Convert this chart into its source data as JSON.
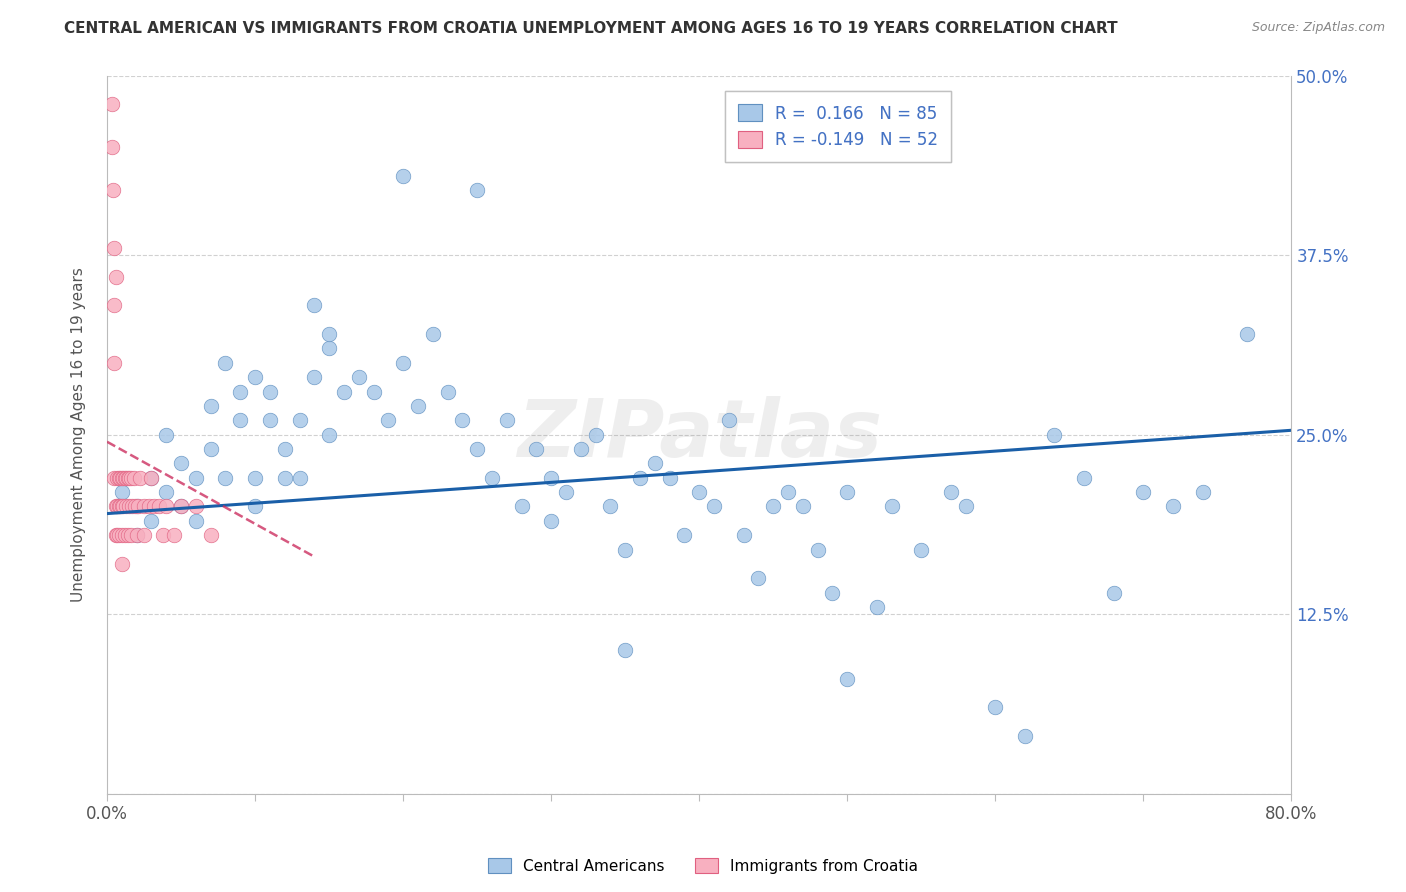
{
  "title": "CENTRAL AMERICAN VS IMMIGRANTS FROM CROATIA UNEMPLOYMENT AMONG AGES 16 TO 19 YEARS CORRELATION CHART",
  "source": "Source: ZipAtlas.com",
  "ylabel": "Unemployment Among Ages 16 to 19 years",
  "xmin": 0.0,
  "xmax": 0.8,
  "ymin": 0.0,
  "ymax": 0.5,
  "blue_R": 0.166,
  "blue_N": 85,
  "pink_R": -0.149,
  "pink_N": 52,
  "blue_face": "#a8c8e8",
  "blue_edge": "#6090c0",
  "pink_face": "#f8b0c0",
  "pink_edge": "#e06080",
  "blue_line": "#1a5fa8",
  "pink_line": "#cc3060",
  "tick_color": "#4472c4",
  "legend_label_blue": "Central Americans",
  "legend_label_pink": "Immigrants from Croatia",
  "watermark": "ZIPatlas",
  "blue_x": [
    0.01,
    0.02,
    0.02,
    0.03,
    0.03,
    0.04,
    0.04,
    0.05,
    0.05,
    0.06,
    0.06,
    0.07,
    0.07,
    0.08,
    0.08,
    0.09,
    0.09,
    0.1,
    0.1,
    0.11,
    0.11,
    0.12,
    0.12,
    0.13,
    0.13,
    0.14,
    0.14,
    0.15,
    0.15,
    0.16,
    0.17,
    0.18,
    0.19,
    0.2,
    0.21,
    0.22,
    0.23,
    0.24,
    0.25,
    0.26,
    0.27,
    0.28,
    0.29,
    0.3,
    0.31,
    0.32,
    0.33,
    0.34,
    0.35,
    0.36,
    0.37,
    0.38,
    0.39,
    0.4,
    0.41,
    0.42,
    0.43,
    0.44,
    0.45,
    0.46,
    0.47,
    0.48,
    0.49,
    0.5,
    0.52,
    0.53,
    0.55,
    0.57,
    0.58,
    0.6,
    0.62,
    0.64,
    0.66,
    0.68,
    0.7,
    0.72,
    0.74,
    0.5,
    0.35,
    0.25,
    0.2,
    0.15,
    0.1,
    0.3,
    0.77
  ],
  "blue_y": [
    0.21,
    0.2,
    0.18,
    0.22,
    0.19,
    0.25,
    0.21,
    0.23,
    0.2,
    0.22,
    0.19,
    0.27,
    0.24,
    0.3,
    0.22,
    0.28,
    0.26,
    0.29,
    0.22,
    0.28,
    0.26,
    0.24,
    0.22,
    0.26,
    0.22,
    0.34,
    0.29,
    0.31,
    0.25,
    0.28,
    0.29,
    0.28,
    0.26,
    0.3,
    0.27,
    0.32,
    0.28,
    0.26,
    0.24,
    0.22,
    0.26,
    0.2,
    0.24,
    0.22,
    0.21,
    0.24,
    0.25,
    0.2,
    0.17,
    0.22,
    0.23,
    0.22,
    0.18,
    0.21,
    0.2,
    0.26,
    0.18,
    0.15,
    0.2,
    0.21,
    0.2,
    0.17,
    0.14,
    0.21,
    0.13,
    0.2,
    0.17,
    0.21,
    0.2,
    0.06,
    0.04,
    0.25,
    0.22,
    0.14,
    0.21,
    0.2,
    0.21,
    0.08,
    0.1,
    0.42,
    0.43,
    0.32,
    0.2,
    0.19,
    0.32
  ],
  "pink_x": [
    0.003,
    0.003,
    0.004,
    0.005,
    0.005,
    0.005,
    0.005,
    0.006,
    0.006,
    0.006,
    0.007,
    0.007,
    0.007,
    0.008,
    0.008,
    0.008,
    0.009,
    0.009,
    0.01,
    0.01,
    0.01,
    0.01,
    0.011,
    0.011,
    0.012,
    0.012,
    0.013,
    0.013,
    0.014,
    0.014,
    0.015,
    0.015,
    0.016,
    0.016,
    0.017,
    0.018,
    0.019,
    0.02,
    0.021,
    0.022,
    0.025,
    0.025,
    0.028,
    0.03,
    0.032,
    0.035,
    0.038,
    0.04,
    0.045,
    0.05,
    0.06,
    0.07
  ],
  "pink_y": [
    0.48,
    0.45,
    0.42,
    0.38,
    0.34,
    0.3,
    0.22,
    0.36,
    0.2,
    0.18,
    0.22,
    0.2,
    0.18,
    0.22,
    0.2,
    0.18,
    0.22,
    0.2,
    0.22,
    0.2,
    0.18,
    0.16,
    0.22,
    0.2,
    0.22,
    0.18,
    0.22,
    0.2,
    0.22,
    0.18,
    0.22,
    0.2,
    0.22,
    0.18,
    0.2,
    0.22,
    0.2,
    0.18,
    0.2,
    0.22,
    0.2,
    0.18,
    0.2,
    0.22,
    0.2,
    0.2,
    0.18,
    0.2,
    0.18,
    0.2,
    0.2,
    0.18
  ],
  "blue_trend_x0": 0.0,
  "blue_trend_x1": 0.8,
  "blue_trend_y0": 0.195,
  "blue_trend_y1": 0.253,
  "pink_trend_x0": 0.0,
  "pink_trend_x1": 0.14,
  "pink_trend_y0": 0.245,
  "pink_trend_y1": 0.165
}
